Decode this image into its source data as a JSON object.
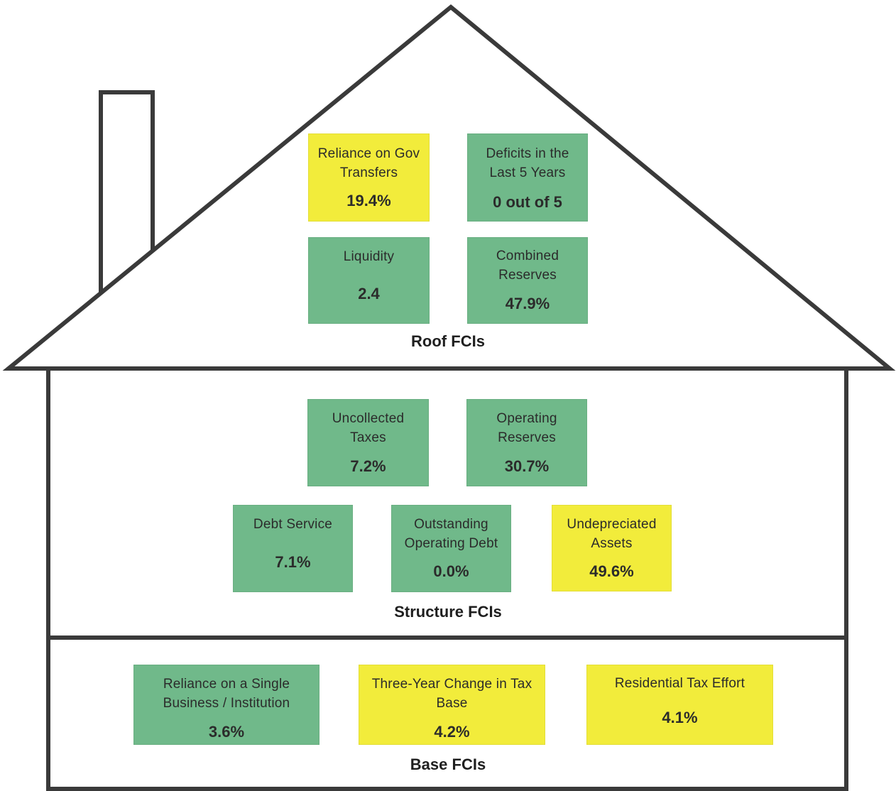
{
  "colors": {
    "green": "#70b98a",
    "yellow": "#f2ec3b",
    "outline": "#3a3a3a"
  },
  "roof": {
    "title": "Roof FCIs",
    "items": [
      {
        "label_lines": [
          "Reliance on Gov",
          "Transfers"
        ],
        "value": "19.4%",
        "status": "yellow"
      },
      {
        "label_lines": [
          "Deficits in the",
          "Last 5 Years"
        ],
        "value": "0 out of 5",
        "status": "green"
      },
      {
        "label_lines": [
          "Liquidity"
        ],
        "value": "2.4",
        "status": "green"
      },
      {
        "label_lines": [
          "Combined",
          "Reserves"
        ],
        "value": "47.9%",
        "status": "green"
      }
    ]
  },
  "structure": {
    "title": "Structure FCIs",
    "items": [
      {
        "label_lines": [
          "Uncollected",
          "Taxes"
        ],
        "value": "7.2%",
        "status": "green"
      },
      {
        "label_lines": [
          "Operating",
          "Reserves"
        ],
        "value": "30.7%",
        "status": "green"
      },
      {
        "label_lines": [
          "Debt Service"
        ],
        "value": "7.1%",
        "status": "green"
      },
      {
        "label_lines": [
          "Outstanding",
          "Operating Debt"
        ],
        "value": "0.0%",
        "status": "green"
      },
      {
        "label_lines": [
          "Undepreciated",
          "Assets"
        ],
        "value": "49.6%",
        "status": "yellow"
      }
    ]
  },
  "base": {
    "title": "Base FCIs",
    "items": [
      {
        "label_lines": [
          "Reliance on a Single",
          "Business / Institution"
        ],
        "value": "3.6%",
        "status": "green"
      },
      {
        "label_lines": [
          "Three-Year Change in Tax",
          "Base"
        ],
        "value": "4.2%",
        "status": "yellow"
      },
      {
        "label_lines": [
          "Residential Tax Effort"
        ],
        "value": "4.1%",
        "status": "yellow"
      }
    ]
  }
}
